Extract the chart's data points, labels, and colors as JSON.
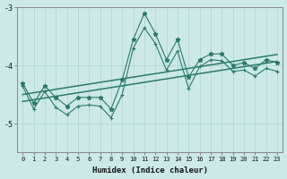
{
  "xlabel": "Humidex (Indice chaleur)",
  "ylabel": "",
  "x": [
    0,
    1,
    2,
    3,
    4,
    5,
    6,
    7,
    8,
    9,
    10,
    11,
    12,
    13,
    14,
    15,
    16,
    17,
    18,
    19,
    20,
    21,
    22,
    23
  ],
  "line_star": [
    -4.3,
    -4.65,
    -4.35,
    -4.55,
    -4.7,
    -4.55,
    -4.55,
    -4.55,
    -4.75,
    -4.25,
    -3.55,
    -3.1,
    -3.45,
    -3.9,
    -3.55,
    -4.2,
    -3.9,
    -3.8,
    -3.8,
    -4.0,
    -3.95,
    -4.05,
    -3.9,
    -3.95
  ],
  "line_plus": [
    -4.35,
    -4.75,
    -4.45,
    -4.72,
    -4.85,
    -4.7,
    -4.68,
    -4.7,
    -4.9,
    -4.5,
    -3.7,
    -3.35,
    -3.62,
    -4.08,
    -3.75,
    -4.4,
    -4.02,
    -3.9,
    -3.92,
    -4.1,
    -4.08,
    -4.18,
    -4.05,
    -4.1
  ],
  "trend1": [
    -4.5,
    -4.47,
    -4.44,
    -4.41,
    -4.38,
    -4.35,
    -4.32,
    -4.29,
    -4.26,
    -4.23,
    -4.2,
    -4.17,
    -4.14,
    -4.11,
    -4.08,
    -4.05,
    -4.02,
    -3.99,
    -3.96,
    -3.93,
    -3.9,
    -3.87,
    -3.84,
    -3.81
  ],
  "trend2": [
    -4.62,
    -4.59,
    -4.56,
    -4.53,
    -4.5,
    -4.47,
    -4.44,
    -4.41,
    -4.38,
    -4.35,
    -4.32,
    -4.29,
    -4.26,
    -4.23,
    -4.2,
    -4.17,
    -4.14,
    -4.11,
    -4.08,
    -4.05,
    -4.02,
    -3.99,
    -3.96,
    -3.93
  ],
  "bg_color": "#cce9e8",
  "grid_color": "#b0d8d6",
  "line_color": "#2a7a6a",
  "ylim": [
    -5.5,
    -3.0
  ],
  "yticks": [
    -5,
    -4,
    -3
  ],
  "xlim": [
    -0.5,
    23.5
  ]
}
